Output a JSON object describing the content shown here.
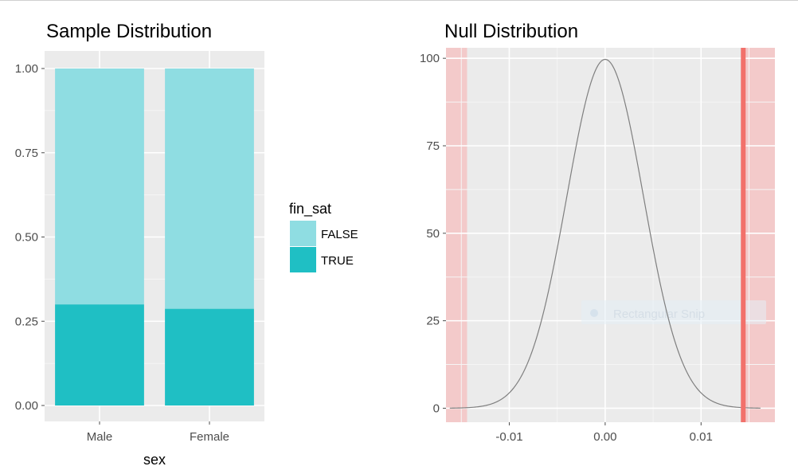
{
  "chart_data": [
    {
      "type": "bar",
      "stacked": true,
      "title": "Sample Distribution",
      "xlabel": "sex",
      "ylabel": "",
      "categories": [
        "Male",
        "Female"
      ],
      "ylim": [
        0,
        1
      ],
      "yticks": [
        "0.00",
        "0.25",
        "0.50",
        "0.75",
        "1.00"
      ],
      "ytick_values": [
        0,
        0.25,
        0.5,
        0.75,
        1.0
      ],
      "legend": {
        "title": "fin_sat",
        "position": "right"
      },
      "series": [
        {
          "name": "TRUE",
          "color": "#1fbfc4",
          "values": [
            0.3,
            0.287
          ]
        },
        {
          "name": "FALSE",
          "color": "#8fdde2",
          "values": [
            0.7,
            0.713
          ]
        }
      ],
      "grid": true,
      "panel_background": "#ebebeb"
    },
    {
      "type": "line",
      "title": "Null Distribution",
      "xlabel": "",
      "ylabel": "",
      "xlim": [
        -0.0166,
        0.0177
      ],
      "ylim": [
        -4,
        103
      ],
      "xticks": [
        "-0.01",
        "0.00",
        "0.01"
      ],
      "xtick_values": [
        -0.01,
        0,
        0.01
      ],
      "yticks": [
        "0",
        "25",
        "50",
        "75",
        "100"
      ],
      "ytick_values": [
        0,
        25,
        50,
        75,
        100
      ],
      "density": {
        "mean": 0.0,
        "sd": 0.004,
        "peak": 99.7,
        "x_range": [
          -0.0162,
          0.0162
        ],
        "color": "#7f7f7f"
      },
      "observed_stat": {
        "x": 0.0144,
        "color": "#f2716b"
      },
      "shaded_regions": [
        {
          "from": -0.0166,
          "to": -0.0144,
          "color": "#f4c7c7"
        },
        {
          "from": 0.0144,
          "to": 0.0177,
          "color": "#f4c7c7"
        }
      ],
      "overlay_text": "Rectangular Snip",
      "grid": true,
      "panel_background": "#ebebeb"
    }
  ]
}
